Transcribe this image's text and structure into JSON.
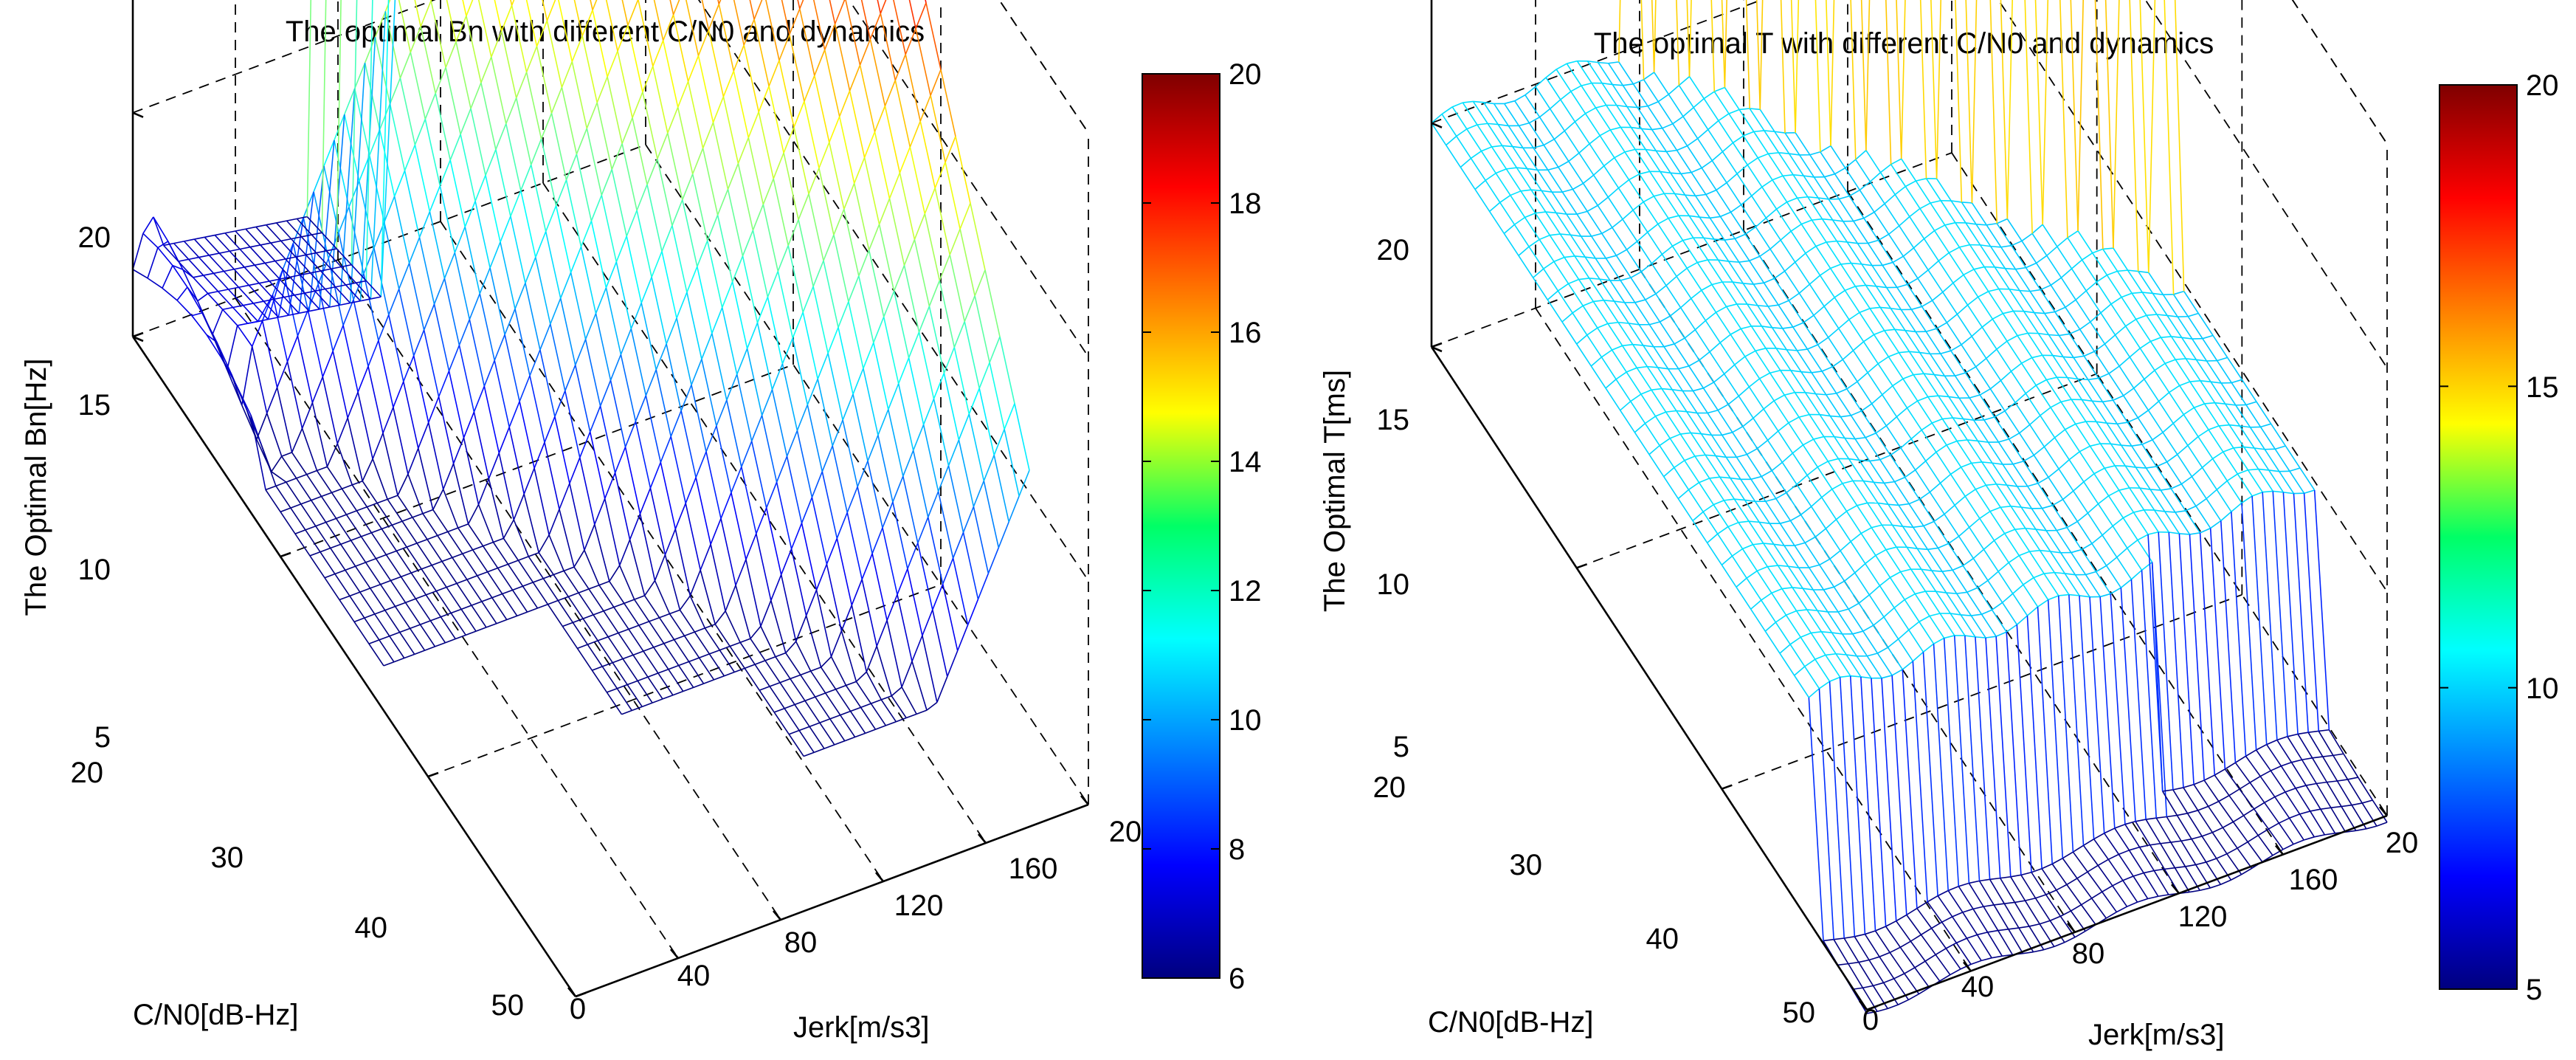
{
  "chart_data": [
    {
      "type": "surface",
      "title": "The optimal Bn with different C/N0 and dynamics",
      "zlabel": "The Optimal Bn[Hz]",
      "ylabel": "C/N0[dB-Hz]",
      "xlabel": "Jerk[m/s3]",
      "jerk_ticks": [
        "0",
        "40",
        "80",
        "120",
        "160",
        "20"
      ],
      "cn0_ticks": [
        "20",
        "30",
        "40",
        "50"
      ],
      "z_ticks": [
        "5",
        "10",
        "15",
        "20"
      ],
      "jerk_range": [
        0,
        200
      ],
      "cn0_range": [
        20,
        50
      ],
      "z_range": [
        5,
        20
      ],
      "colorbar_ticks": [
        "6",
        "8",
        "10",
        "12",
        "14",
        "16",
        "18",
        "20"
      ],
      "colorbar_range": [
        6,
        20
      ],
      "surface_description_levels": {
        "low_cn0_start_jerk": 0,
        "plateau_value": 20,
        "min_value": 6
      }
    },
    {
      "type": "surface",
      "title": "The optimal T with different C/N0 and dynamics",
      "zlabel": "The Optimal T[ms]",
      "ylabel": "C/N0[dB-Hz]",
      "xlabel": "Jerk[m/s3]",
      "jerk_ticks": [
        "0",
        "40",
        "80",
        "120",
        "160",
        "20"
      ],
      "cn0_ticks": [
        "20",
        "30",
        "40",
        "50"
      ],
      "z_ticks": [
        "5",
        "10",
        "15",
        "20"
      ],
      "jerk_range": [
        0,
        200
      ],
      "cn0_range": [
        20,
        50
      ],
      "z_range": [
        5,
        20
      ],
      "colorbar_ticks": [
        "5",
        "10",
        "15",
        "20"
      ],
      "colorbar_range": [
        5,
        20
      ],
      "surface_levels": [
        5,
        10,
        20
      ]
    }
  ]
}
